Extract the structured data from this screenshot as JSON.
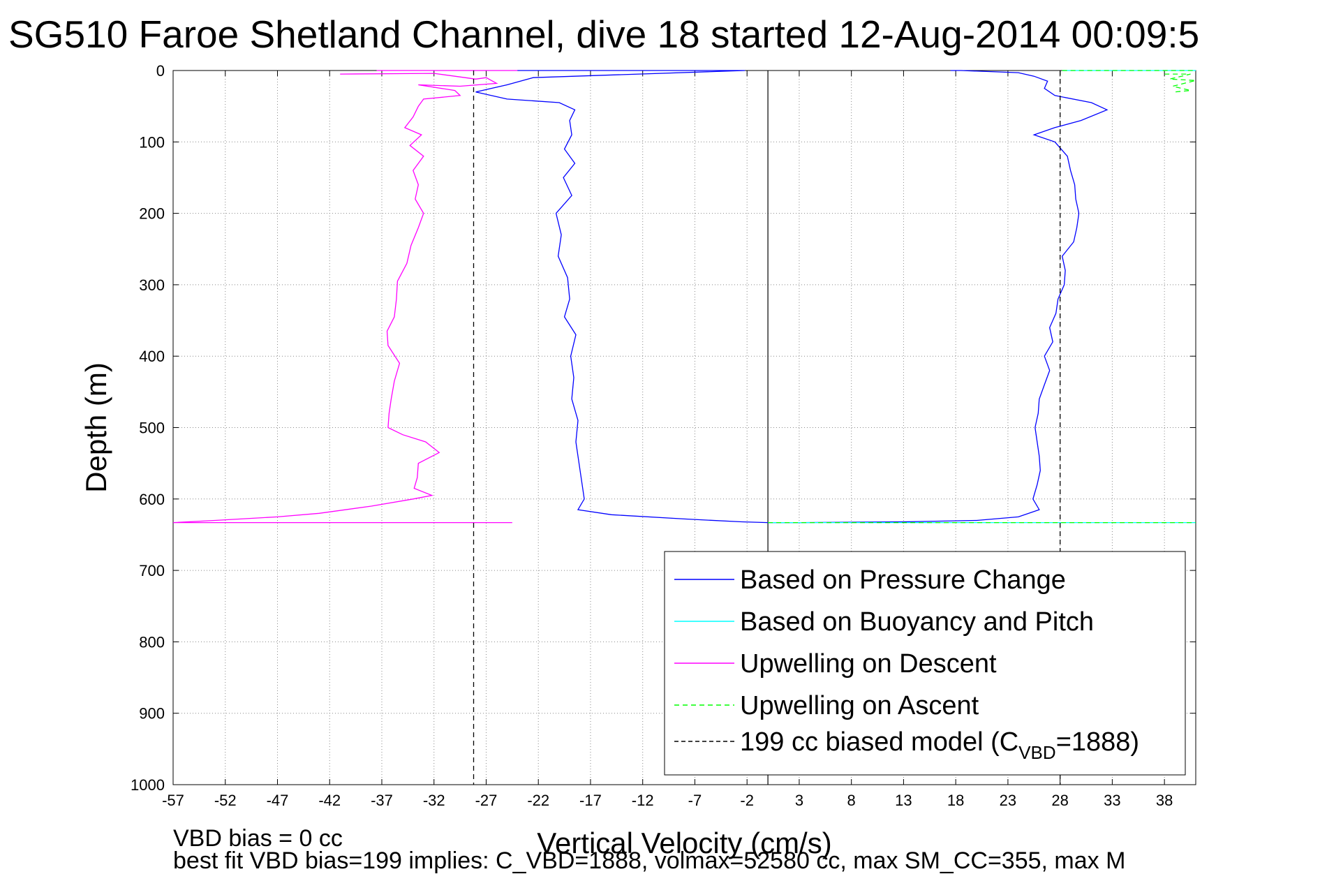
{
  "chart_data": {
    "type": "line",
    "title": "SG510 Faroe Shetland Channel, dive 18 started 12-Aug-2014 00:09:5",
    "xlabel": "Vertical Velocity (cm/s)",
    "ylabel": "Depth (m)",
    "xlim": [
      -57,
      41
    ],
    "ylim": [
      0,
      1000
    ],
    "y_reversed": true,
    "grid": true,
    "x_ticks": [
      -57,
      -52,
      -47,
      -42,
      -37,
      -32,
      -27,
      -22,
      -17,
      -12,
      -7,
      -2,
      3,
      8,
      13,
      18,
      23,
      28,
      33,
      38
    ],
    "y_ticks": [
      0,
      100,
      200,
      300,
      400,
      500,
      600,
      700,
      800,
      900,
      1000
    ],
    "legend_position": "bottom-right",
    "series": [
      {
        "name": "Based on Pressure Change",
        "color": "#0000ff",
        "style": "solid",
        "segments": [
          [
            [
              -24,
              0
            ],
            [
              -2.2,
              0
            ],
            [
              -22.5,
              10
            ],
            [
              -25,
              20
            ],
            [
              -28,
              30
            ],
            [
              -25,
              40
            ],
            [
              -20,
              45
            ],
            [
              -18.5,
              55
            ],
            [
              -19,
              70
            ],
            [
              -18.8,
              90
            ],
            [
              -19.5,
              110
            ],
            [
              -18.5,
              130
            ],
            [
              -19.6,
              150
            ],
            [
              -18.8,
              175
            ],
            [
              -20.3,
              200
            ],
            [
              -19.8,
              230
            ],
            [
              -20.1,
              260
            ],
            [
              -19.2,
              290
            ],
            [
              -19,
              320
            ],
            [
              -19.5,
              345
            ],
            [
              -18.4,
              370
            ],
            [
              -18.9,
              400
            ],
            [
              -18.6,
              430
            ],
            [
              -18.8,
              460
            ],
            [
              -18.2,
              490
            ],
            [
              -18.4,
              520
            ],
            [
              -18.1,
              550
            ],
            [
              -17.8,
              580
            ],
            [
              -17.6,
              600
            ],
            [
              -18.2,
              615
            ],
            [
              -15,
              622
            ],
            [
              -8,
              628
            ],
            [
              -2.5,
              632
            ],
            [
              0,
              633
            ],
            [
              3,
              633
            ],
            [
              13,
              632
            ],
            [
              20,
              630
            ],
            [
              24,
              625
            ],
            [
              26,
              615
            ],
            [
              25.4,
              600
            ],
            [
              25.8,
              580
            ],
            [
              26.1,
              560
            ],
            [
              26,
              540
            ],
            [
              25.8,
              520
            ],
            [
              25.6,
              500
            ],
            [
              25.9,
              480
            ],
            [
              26,
              460
            ],
            [
              26.5,
              440
            ],
            [
              27,
              420
            ],
            [
              26.5,
              400
            ],
            [
              27.3,
              380
            ],
            [
              27,
              360
            ],
            [
              27.6,
              340
            ],
            [
              27.8,
              320
            ],
            [
              28.4,
              300
            ],
            [
              28.5,
              280
            ],
            [
              28.2,
              260
            ],
            [
              29.3,
              240
            ],
            [
              29.6,
              220
            ],
            [
              29.8,
              200
            ],
            [
              29.5,
              180
            ],
            [
              29.4,
              160
            ],
            [
              29,
              140
            ],
            [
              28.7,
              120
            ],
            [
              27.5,
              100
            ],
            [
              25.5,
              90
            ],
            [
              27.5,
              80
            ],
            [
              30,
              70
            ],
            [
              32.5,
              55
            ],
            [
              31,
              45
            ],
            [
              27.5,
              35
            ],
            [
              26.5,
              25
            ],
            [
              26.8,
              15
            ],
            [
              25.5,
              8
            ],
            [
              24,
              3
            ],
            [
              18.5,
              0
            ],
            [
              17.5,
              0
            ]
          ]
        ]
      },
      {
        "name": "Based on Buoyancy and Pitch",
        "color": "#00ffff",
        "style": "solid",
        "segments": [
          [
            [
              28.2,
              0
            ],
            [
              41,
              0
            ]
          ],
          [
            [
              0,
              633
            ],
            [
              41,
              633
            ]
          ]
        ]
      },
      {
        "name": "Upwelling on Descent",
        "color": "#ff00ff",
        "style": "solid",
        "segments": [
          [
            [
              -41,
              5
            ],
            [
              -32,
              4
            ],
            [
              -30,
              8
            ],
            [
              -28,
              12
            ],
            [
              -27,
              10
            ],
            [
              -26,
              18
            ],
            [
              -29.5,
              22
            ],
            [
              -33.5,
              20
            ],
            [
              -30,
              28
            ],
            [
              -29.5,
              35
            ],
            [
              -33,
              40
            ],
            [
              -33.5,
              50
            ],
            [
              -34,
              65
            ],
            [
              -34.8,
              80
            ],
            [
              -33.2,
              90
            ],
            [
              -34.3,
              105
            ],
            [
              -33,
              120
            ],
            [
              -34,
              140
            ],
            [
              -33.5,
              160
            ],
            [
              -33.8,
              180
            ],
            [
              -33,
              200
            ],
            [
              -33.5,
              220
            ],
            [
              -34.2,
              245
            ],
            [
              -34.6,
              270
            ],
            [
              -35.5,
              295
            ],
            [
              -35.6,
              320
            ],
            [
              -35.8,
              345
            ],
            [
              -36.5,
              365
            ],
            [
              -36.4,
              385
            ],
            [
              -35.3,
              410
            ],
            [
              -35.8,
              435
            ],
            [
              -36.1,
              460
            ],
            [
              -36.3,
              480
            ],
            [
              -36.4,
              500
            ],
            [
              -35,
              510
            ],
            [
              -32.8,
              520
            ],
            [
              -31.5,
              535
            ],
            [
              -33.5,
              550
            ],
            [
              -33.6,
              570
            ],
            [
              -33.9,
              585
            ],
            [
              -32.2,
              595
            ],
            [
              -34,
              600
            ],
            [
              -38,
              610
            ],
            [
              -43,
              620
            ],
            [
              -47,
              625
            ],
            [
              -53,
              630
            ],
            [
              -57,
              633
            ],
            [
              -24.5,
              633
            ]
          ],
          [
            [
              -37.5,
              0
            ],
            [
              -24,
              0
            ]
          ]
        ]
      },
      {
        "name": "Upwelling on Ascent",
        "color": "#00ff00",
        "style": "dashed",
        "segments": [
          [
            [
              28.2,
              0
            ],
            [
              41,
              0
            ]
          ],
          [
            [
              0,
              633
            ],
            [
              41,
              633
            ]
          ],
          [
            [
              38,
              5
            ],
            [
              40.5,
              5
            ],
            [
              38.5,
              12
            ],
            [
              41,
              14
            ],
            [
              38.8,
              22
            ],
            [
              40.5,
              28
            ],
            [
              39,
              30
            ]
          ]
        ]
      },
      {
        "name": "199 cc biased model (C_VBD=1888)",
        "color": "#000000",
        "style": "dashed",
        "segments": [
          [
            [
              -28.2,
              0
            ],
            [
              -28.2,
              1000
            ]
          ],
          [
            [
              28,
              0
            ],
            [
              28,
              1000
            ]
          ]
        ]
      }
    ],
    "reference_lines": [
      {
        "x": 0,
        "style": "solid",
        "color": "#000000"
      }
    ]
  },
  "legend": {
    "items": [
      {
        "label": "Based on Pressure Change",
        "color": "#0000ff",
        "dashed": false
      },
      {
        "label": "Based on Buoyancy and Pitch",
        "color": "#00ffff",
        "dashed": false
      },
      {
        "label": "Upwelling on Descent",
        "color": "#ff00ff",
        "dashed": false
      },
      {
        "label": "Upwelling on Ascent",
        "color": "#00ff00",
        "dashed": true
      }
    ],
    "model_label_main": "199 cc biased model (C",
    "model_label_sub": "VBD",
    "model_label_tail": "=1888)",
    "model_color": "#000000"
  },
  "footer": {
    "line1": "VBD bias = 0 cc",
    "line2": "best fit VBD bias=199 implies: C_VBD=1888, volmax=52580 cc, max SM_CC=355, max M"
  }
}
